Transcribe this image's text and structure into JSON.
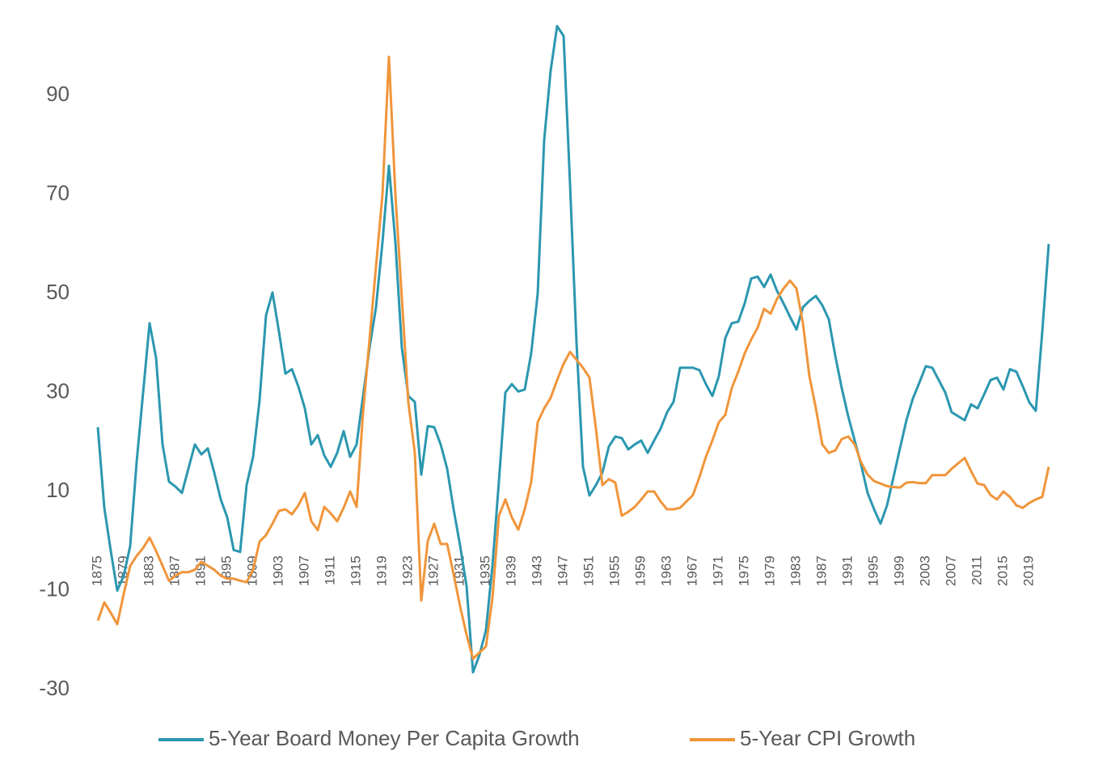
{
  "chart_data": {
    "type": "line",
    "x": [
      1875,
      1876,
      1877,
      1878,
      1879,
      1880,
      1881,
      1882,
      1883,
      1884,
      1885,
      1886,
      1887,
      1888,
      1889,
      1890,
      1891,
      1892,
      1893,
      1894,
      1895,
      1896,
      1897,
      1898,
      1899,
      1900,
      1901,
      1902,
      1903,
      1904,
      1905,
      1906,
      1907,
      1908,
      1909,
      1910,
      1911,
      1912,
      1913,
      1914,
      1915,
      1916,
      1917,
      1918,
      1919,
      1920,
      1921,
      1922,
      1923,
      1924,
      1925,
      1926,
      1927,
      1928,
      1929,
      1930,
      1931,
      1932,
      1933,
      1934,
      1935,
      1936,
      1937,
      1938,
      1939,
      1940,
      1941,
      1942,
      1943,
      1944,
      1945,
      1946,
      1947,
      1948,
      1949,
      1950,
      1951,
      1952,
      1953,
      1954,
      1955,
      1956,
      1957,
      1958,
      1959,
      1960,
      1961,
      1962,
      1963,
      1964,
      1965,
      1966,
      1967,
      1968,
      1969,
      1970,
      1971,
      1972,
      1973,
      1974,
      1975,
      1976,
      1977,
      1978,
      1979,
      1980,
      1981,
      1982,
      1983,
      1984,
      1985,
      1986,
      1987,
      1988,
      1989,
      1990,
      1991,
      1992,
      1993,
      1994,
      1995,
      1996,
      1997,
      1998,
      1999,
      2000,
      2001,
      2002,
      2003,
      2004,
      2005,
      2006,
      2007,
      2008,
      2009,
      2010,
      2011,
      2012,
      2013,
      2014,
      2015,
      2016,
      2017,
      2018,
      2019,
      2020,
      2021,
      2022
    ],
    "xlim": [
      1875,
      2022
    ],
    "xticks": [
      1875,
      1879,
      1883,
      1887,
      1891,
      1895,
      1899,
      1903,
      1907,
      1911,
      1915,
      1919,
      1923,
      1927,
      1931,
      1935,
      1939,
      1943,
      1947,
      1951,
      1955,
      1959,
      1963,
      1967,
      1971,
      1975,
      1979,
      1983,
      1987,
      1991,
      1995,
      1999,
      2003,
      2007,
      2011,
      2015,
      2019
    ],
    "ylim": [
      -40,
      110
    ],
    "yticks": [
      -30,
      -10,
      10,
      30,
      50,
      70,
      90
    ],
    "grid": false,
    "legend": "bottom",
    "series": [
      {
        "name": "5-Year Board Money Per Capita Growth",
        "color": "#2b97b0",
        "values": [
          23,
          6.7,
          -2,
          -10,
          -7,
          -1,
          16,
          30,
          44,
          37,
          19.5,
          12,
          11,
          9.7,
          14.6,
          19.5,
          17.5,
          18.7,
          13.8,
          8.4,
          4.8,
          -1.8,
          -2.2,
          11.3,
          17,
          28.4,
          45.6,
          50.2,
          42.3,
          33.8,
          34.7,
          31.2,
          26.8,
          19.5,
          21.4,
          17.3,
          15,
          17.8,
          22.2,
          17,
          19.5,
          29.3,
          39,
          47.2,
          60.3,
          75.8,
          60.3,
          39,
          29.3,
          28.1,
          13.4,
          23.2,
          23,
          19.5,
          14.6,
          6.4,
          -0.9,
          -9.1,
          -26.5,
          -23,
          -18,
          -5,
          12,
          30,
          31.7,
          30.2,
          30.6,
          38,
          50,
          81,
          95,
          104,
          102,
          72,
          40,
          15,
          9.2,
          11.3,
          13.8,
          19.1,
          21.1,
          20.8,
          18.5,
          19.5,
          20.3,
          17.8,
          20.3,
          22.7,
          26,
          28.1,
          35,
          35,
          35,
          34.5,
          31.7,
          29.3,
          33.3,
          41,
          44,
          44.3,
          48,
          53,
          53.4,
          51.3,
          53.8,
          50.5,
          48,
          45.3,
          42.7,
          47.2,
          48.5,
          49.5,
          47.6,
          44.8,
          37.4,
          30.9,
          25.2,
          20.3,
          15.4,
          9.7,
          6.4,
          3.5,
          7.2,
          12.9,
          18.7,
          24.4,
          28.8,
          32,
          35.3,
          35,
          32.5,
          30,
          26,
          25.2,
          24.4,
          27.6,
          26.8,
          29.6,
          32.5,
          33,
          30.6,
          34.7,
          34.2,
          31.2,
          28,
          26.3,
          42.3,
          60
        ]
      },
      {
        "name": "5-Year CPI Growth",
        "color": "#f0953a",
        "values": [
          -16.1,
          -12.4,
          -14.5,
          -16.8,
          -10.7,
          -5,
          -3,
          -1.4,
          0.7,
          -2,
          -5,
          -8,
          -7,
          -6.3,
          -6.3,
          -5.8,
          -4.2,
          -5,
          -5.8,
          -7,
          -7.6,
          -7.6,
          -8,
          -8.3,
          -5.8,
          -0.1,
          1.2,
          3.5,
          6.1,
          6.4,
          5.4,
          7.2,
          9.7,
          4,
          2.2,
          6.9,
          5.6,
          4,
          6.7,
          10,
          6.9,
          26,
          40.7,
          55.4,
          70,
          97.8,
          70,
          49,
          28,
          17.8,
          -12,
          0,
          3.5,
          -0.6,
          -0.6,
          -6.7,
          -13.2,
          -18.9,
          -23.8,
          -22.5,
          -21.3,
          -11.5,
          5.1,
          8.4,
          4.8,
          2.3,
          6.4,
          12,
          24,
          26.8,
          28.9,
          32.5,
          35.8,
          38.2,
          36.6,
          35,
          33,
          22.7,
          11.3,
          12.5,
          11.8,
          5.1,
          5.9,
          6.9,
          8.4,
          10,
          10,
          8,
          6.4,
          6.4,
          6.7,
          8,
          9.3,
          12.9,
          17,
          20.3,
          24,
          25.5,
          30.9,
          34.2,
          37.9,
          40.7,
          43.1,
          46.9,
          45.9,
          48.9,
          51,
          52.6,
          51,
          44,
          33.3,
          26.8,
          19.5,
          17.8,
          18.3,
          20.6,
          21.1,
          19.5,
          15.9,
          13.4,
          12.1,
          11.6,
          11.1,
          10.9,
          10.8,
          11.8,
          11.9,
          11.7,
          11.7,
          13.3,
          13.3,
          13.3,
          14.6,
          15.7,
          16.8,
          14.1,
          11.6,
          11.3,
          9.3,
          8.4,
          10,
          8.9,
          7.2,
          6.7,
          7.7,
          8.4,
          8.9,
          15
        ]
      }
    ]
  }
}
